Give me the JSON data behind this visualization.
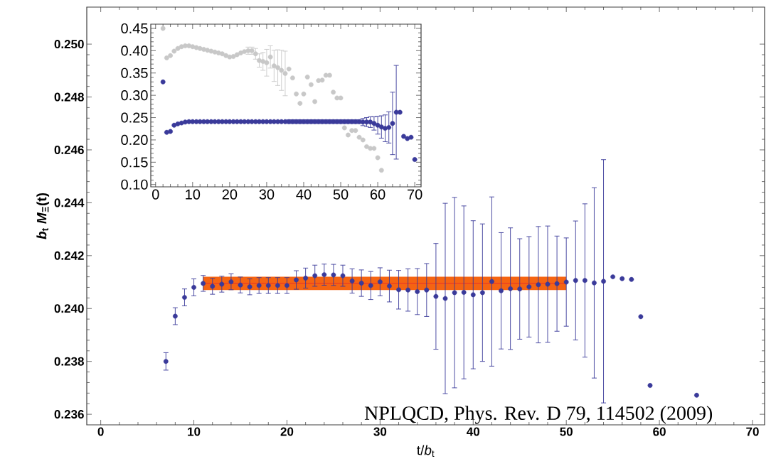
{
  "chart_data": [
    {
      "type": "scatter",
      "xlabel": "t/*b*$_{t}$",
      "ylabel": "*b*$_{t}$ *M*$_{Ξ}$(t)",
      "annotations": [
        "NPLQCD, Phys. Rev. D 79, 114502 (2009)"
      ],
      "xlim": [
        -1.5,
        71.3
      ],
      "ylim": [
        0.2356,
        0.2514
      ],
      "xticks": [
        0,
        10,
        20,
        30,
        40,
        50,
        60,
        70
      ],
      "yticks": [
        {
          "value": 0.236,
          "label": "0.236"
        },
        {
          "value": 0.238,
          "label": "0.238"
        },
        {
          "value": 0.24,
          "label": "0.240"
        },
        {
          "value": 0.242,
          "label": "0.242"
        },
        {
          "value": 0.244,
          "label": "0.244"
        },
        {
          "value": 0.246,
          "label": "0.246"
        },
        {
          "value": 0.248,
          "label": "0.248"
        },
        {
          "value": 0.25,
          "label": "0.250"
        }
      ],
      "series": [
        {
          "color": "#3a3a9a",
          "marker": "circle",
          "x": [
            7,
            8,
            9,
            10,
            11,
            12,
            13,
            14,
            15,
            16,
            17,
            18,
            19,
            20,
            21,
            22,
            23,
            24,
            25,
            26,
            27,
            28,
            29,
            30,
            31,
            32,
            33,
            34,
            35,
            36,
            37,
            38,
            39,
            40,
            41,
            42,
            43,
            44,
            45,
            46,
            47,
            48,
            49,
            50,
            51,
            52,
            53,
            54,
            55,
            56,
            57,
            58,
            59,
            64
          ],
          "values": [
            0.238,
            0.23971,
            0.24042,
            0.2408,
            0.24095,
            0.24084,
            0.24092,
            0.24101,
            0.24089,
            0.24082,
            0.24087,
            0.24087,
            0.24087,
            0.24087,
            0.24108,
            0.24115,
            0.24124,
            0.24128,
            0.24127,
            0.24124,
            0.24104,
            0.24096,
            0.24087,
            0.24101,
            0.24085,
            0.24071,
            0.2407,
            0.24064,
            0.2407,
            0.24046,
            0.24038,
            0.2406,
            0.24061,
            0.24052,
            0.2406,
            0.24102,
            0.24067,
            0.24075,
            0.24074,
            0.24082,
            0.2409,
            0.24092,
            0.24094,
            0.241,
            0.24106,
            0.24106,
            0.24097,
            0.24103,
            0.2412,
            0.24113,
            0.2411,
            0.23969,
            0.23709,
            0.23672
          ],
          "errors": [
            0.00033,
            0.00032,
            0.00032,
            0.00032,
            0.0003,
            0.0003,
            0.0003,
            0.0003,
            0.0003,
            0.0003,
            0.0003,
            0.0003,
            0.0003,
            0.0003,
            0.00035,
            0.00038,
            0.0004,
            0.0004,
            0.0004,
            0.0004,
            0.00046,
            0.0005,
            0.00053,
            0.00053,
            0.0006,
            0.00073,
            0.0008,
            0.00087,
            0.001,
            0.002,
            0.0036,
            0.0036,
            0.00327,
            0.0028,
            0.0026,
            0.0032,
            0.0022,
            0.0023,
            0.0019,
            0.0019,
            0.0022,
            0.0022,
            0.0018,
            0.00167,
            0.00225,
            0.0029,
            0.0036,
            0.0046,
            null,
            null,
            null,
            null,
            null,
            null
          ]
        },
        {
          "type": "line",
          "marker": "none",
          "color": "#e8302a",
          "x": [
            11,
            50
          ],
          "values": [
            0.24095,
            0.24095
          ],
          "lower": [
            0.2407,
            0.2407
          ],
          "upper": [
            0.2412,
            0.2412
          ]
        }
      ]
    },
    {
      "type": "scatter",
      "xlim": [
        -1.3,
        71.7
      ],
      "ylim": [
        0.0948,
        0.4595
      ],
      "xticks": [
        0,
        10,
        20,
        30,
        40,
        50,
        60,
        70
      ],
      "yticks": [
        {
          "value": 0.1,
          "label": "0.10"
        },
        0.15,
        {
          "value": 0.2,
          "label": "0.20"
        },
        0.25,
        {
          "value": 0.3,
          "label": "0.30"
        },
        0.35,
        {
          "value": 0.4,
          "label": "0.40"
        },
        0.45
      ],
      "series": [
        {
          "color": "#c8c8c8",
          "marker": "circle",
          "x": [
            2,
            3,
            4,
            5,
            6,
            7,
            8,
            9,
            10,
            11,
            12,
            13,
            14,
            15,
            16,
            17,
            18,
            19,
            20,
            21,
            22,
            23,
            24,
            25,
            26,
            27,
            28,
            29,
            30,
            31,
            32,
            33,
            34,
            35,
            36,
            37,
            38,
            39,
            40,
            41,
            42,
            43,
            44,
            45,
            46,
            47,
            48,
            49,
            50,
            51,
            52,
            53,
            54,
            55,
            56,
            57,
            58,
            59,
            60,
            61
          ],
          "values": [
            0.45,
            0.384,
            0.389,
            0.399,
            0.405,
            0.409,
            0.411,
            0.411,
            0.409,
            0.407,
            0.405,
            0.403,
            0.401,
            0.399,
            0.397,
            0.395,
            0.393,
            0.389,
            0.386,
            0.387,
            0.391,
            0.395,
            0.398,
            0.4,
            0.4,
            0.393,
            0.378,
            0.376,
            0.373,
            0.386,
            0.366,
            0.362,
            0.356,
            0.349,
            0.359,
            0.339,
            0.303,
            0.282,
            0.303,
            0.341,
            0.324,
            0.286,
            0.333,
            0.334,
            0.345,
            0.345,
            0.307,
            0.294,
            0.294,
            0.227,
            0.211,
            0.221,
            0.221,
            0.206,
            0.2,
            0.185,
            0.181,
            0.181,
            0.16,
            0.132
          ],
          "errors": [
            null,
            null,
            null,
            null,
            null,
            null,
            null,
            null,
            null,
            null,
            null,
            null,
            null,
            null,
            null,
            null,
            null,
            null,
            null,
            null,
            null,
            null,
            null,
            0.008,
            0.008,
            0.012,
            0.015,
            0.02,
            0.03,
            0.025,
            0.035,
            0.04,
            0.045,
            0.05,
            null,
            null,
            null,
            null,
            null,
            null,
            null,
            null,
            null,
            null,
            null,
            null,
            null,
            null,
            null,
            null,
            null,
            null,
            null,
            null,
            null,
            null,
            null,
            null,
            null,
            null
          ]
        },
        {
          "color": "#3a3a9a",
          "marker": "circle",
          "x": [
            2,
            3,
            4,
            5,
            6,
            7,
            8,
            9,
            10,
            11,
            12,
            13,
            14,
            15,
            16,
            17,
            18,
            19,
            20,
            21,
            22,
            23,
            24,
            25,
            26,
            27,
            28,
            29,
            30,
            31,
            32,
            33,
            34,
            35,
            36,
            37,
            38,
            39,
            40,
            41,
            42,
            43,
            44,
            45,
            46,
            47,
            48,
            49,
            50,
            51,
            52,
            53,
            54,
            55,
            56,
            57,
            58,
            59,
            60,
            61,
            62,
            63,
            64,
            65,
            66,
            67,
            68,
            69,
            70
          ],
          "values": [
            0.33,
            0.217,
            0.219,
            0.233,
            0.236,
            0.238,
            0.24,
            0.241,
            0.241,
            0.241,
            0.241,
            0.241,
            0.241,
            0.241,
            0.241,
            0.241,
            0.241,
            0.241,
            0.241,
            0.241,
            0.241,
            0.241,
            0.241,
            0.241,
            0.241,
            0.241,
            0.241,
            0.241,
            0.241,
            0.241,
            0.241,
            0.241,
            0.241,
            0.241,
            0.241,
            0.241,
            0.241,
            0.241,
            0.241,
            0.241,
            0.241,
            0.241,
            0.241,
            0.241,
            0.241,
            0.241,
            0.241,
            0.241,
            0.241,
            0.241,
            0.241,
            0.241,
            0.241,
            0.241,
            0.24,
            0.24,
            0.24,
            0.237,
            0.233,
            0.229,
            0.226,
            0.228,
            0.237,
            0.262,
            0.262,
            0.208,
            0.203,
            0.206,
            0.156
          ],
          "errors": [
            null,
            null,
            null,
            null,
            null,
            null,
            null,
            null,
            null,
            null,
            null,
            null,
            null,
            null,
            null,
            null,
            null,
            null,
            null,
            null,
            null,
            null,
            null,
            null,
            null,
            null,
            null,
            null,
            null,
            null,
            null,
            null,
            null,
            null,
            0.004,
            0.004,
            0.004,
            0.004,
            0.004,
            0.004,
            0.004,
            0.004,
            0.004,
            0.004,
            0.004,
            0.004,
            0.004,
            0.004,
            0.004,
            0.004,
            0.004,
            0.004,
            0.004,
            0.004,
            0.008,
            0.01,
            0.012,
            0.015,
            0.02,
            0.025,
            0.03,
            0.035,
            0.07,
            0.105,
            null,
            null,
            null,
            null,
            null
          ]
        }
      ]
    }
  ]
}
